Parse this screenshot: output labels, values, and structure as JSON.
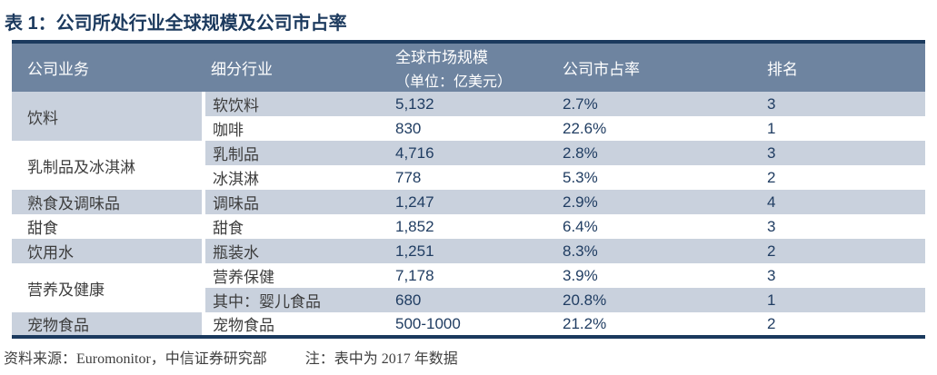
{
  "title": "表 1：公司所处行业全球规模及公司市占率",
  "colors": {
    "accent_navy": "#1b3a5e",
    "header_bg": "#6e84a0",
    "header_text": "#ffffff",
    "row_shade": "#c9d1dd",
    "number_text": "#203d62",
    "body_text": "#3d3d3d"
  },
  "table": {
    "header": {
      "business": "公司业务",
      "segment": "细分行业",
      "size_line1": "全球市场规模",
      "size_line2": "（单位：亿美元）",
      "share": "公司市占率",
      "rank": "排名"
    },
    "groups": [
      {
        "business": "饮料",
        "rows": [
          {
            "segment": "软饮料",
            "size": "5,132",
            "share": "2.7%",
            "rank": "3"
          },
          {
            "segment": "咖啡",
            "size": "830",
            "share": "22.6%",
            "rank": "1"
          }
        ]
      },
      {
        "business": "乳制品及冰淇淋",
        "rows": [
          {
            "segment": "乳制品",
            "size": "4,716",
            "share": "2.8%",
            "rank": "3"
          },
          {
            "segment": "冰淇淋",
            "size": "778",
            "share": "5.3%",
            "rank": "2"
          }
        ]
      },
      {
        "business": "熟食及调味品",
        "rows": [
          {
            "segment": "调味品",
            "size": "1,247",
            "share": "2.9%",
            "rank": "4"
          }
        ]
      },
      {
        "business": "甜食",
        "rows": [
          {
            "segment": "甜食",
            "size": "1,852",
            "share": "6.4%",
            "rank": "3"
          }
        ]
      },
      {
        "business": "饮用水",
        "rows": [
          {
            "segment": "瓶装水",
            "size": "1,251",
            "share": "8.3%",
            "rank": "2"
          }
        ]
      },
      {
        "business": "营养及健康",
        "rows": [
          {
            "segment": "营养保健",
            "size": "7,178",
            "share": "3.9%",
            "rank": "3"
          },
          {
            "segment": "其中：婴儿食品",
            "size": "680",
            "share": "20.8%",
            "rank": "1"
          }
        ]
      },
      {
        "business": "宠物食品",
        "rows": [
          {
            "segment": "宠物食品",
            "size": "500-1000",
            "share": "21.2%",
            "rank": "2"
          }
        ]
      }
    ]
  },
  "footer": {
    "source": "资料来源：Euromonitor，中信证券研究部",
    "note": "注：表中为 2017 年数据"
  },
  "chart_data": {
    "type": "table",
    "title": "表 1：公司所处行业全球规模及公司市占率",
    "columns": [
      "公司业务",
      "细分行业",
      "全球市场规模（单位：亿美元）",
      "公司市占率",
      "排名"
    ],
    "rows": [
      [
        "饮料",
        "软饮料",
        "5,132",
        "2.7%",
        "3"
      ],
      [
        "饮料",
        "咖啡",
        "830",
        "22.6%",
        "1"
      ],
      [
        "乳制品及冰淇淋",
        "乳制品",
        "4,716",
        "2.8%",
        "3"
      ],
      [
        "乳制品及冰淇淋",
        "冰淇淋",
        "778",
        "5.3%",
        "2"
      ],
      [
        "熟食及调味品",
        "调味品",
        "1,247",
        "2.9%",
        "4"
      ],
      [
        "甜食",
        "甜食",
        "1,852",
        "6.4%",
        "3"
      ],
      [
        "饮用水",
        "瓶装水",
        "1,251",
        "8.3%",
        "2"
      ],
      [
        "营养及健康",
        "营养保健",
        "7,178",
        "3.9%",
        "3"
      ],
      [
        "营养及健康",
        "其中：婴儿食品",
        "680",
        "20.8%",
        "1"
      ],
      [
        "宠物食品",
        "宠物食品",
        "500-1000",
        "21.2%",
        "2"
      ]
    ],
    "unit": "亿美元",
    "source": "资料来源：Euromonitor，中信证券研究部",
    "note": "注：表中为 2017 年数据"
  }
}
